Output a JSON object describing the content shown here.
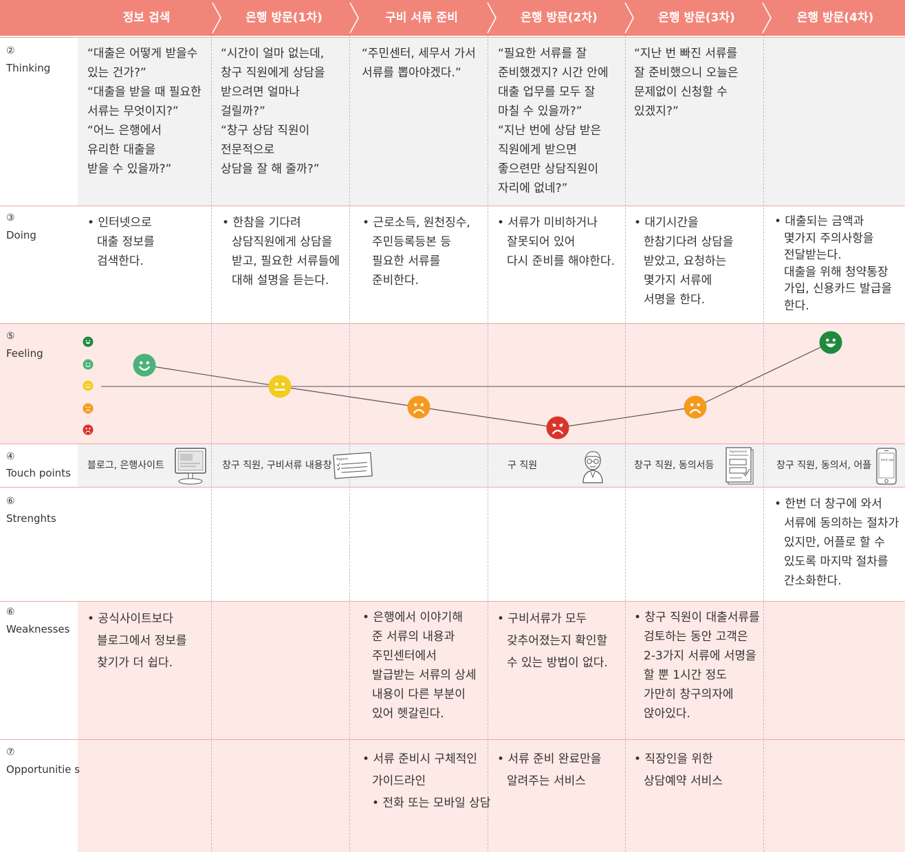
{
  "stages": [
    "정보 검색",
    "은행 방문(1차)",
    "구비 서류 준비",
    "은행 방문(2차)",
    "은행 방문(3차)",
    "은행 방문(4차)"
  ],
  "rows": {
    "thinking": {
      "num": "②",
      "name": "Thinking"
    },
    "doing": {
      "num": "③",
      "name": "Doing"
    },
    "feeling": {
      "num": "⑤",
      "name": "Feeling"
    },
    "touch": {
      "num": "④",
      "name": "Touch points"
    },
    "strengths": {
      "num": "⑥",
      "name": "Strenghts"
    },
    "weaknesses": {
      "num": "⑥",
      "name": "Weaknesses"
    },
    "opportunities": {
      "num": "⑦",
      "name": "Opportunitie s"
    }
  },
  "thinking": [
    "“대출은 어떻게 받을수\n 있는 건가?”\n“대출을 받을 때 필요한\n 서류는 무엇이지?”\n“어느 은행에서\n 유리한 대출을\n 받을 수 있을까?”",
    "“시간이 얼마 없는데,\n 창구 직원에게 상담을\n 받으려면 얼마나\n 걸릴까?”\n“창구 상담 직원이\n 전문적으로\n 상담을 잘 해 줄까?”",
    "“주민센터, 세무서 가서\n서류를 뽑아야겠다.”",
    "“필요한 서류를 잘\n 준비했겠지? 시간 안에\n 대출 업무를 모두 잘\n 마칠 수 있을까?”\n“지난 번에 상담 받은\n 직원에게 받으면\n 좋으련만 상담직원이\n 자리에 없네?”",
    "“지난 번 빠진 서류를\n 잘 준비했으니 오늘은\n 문제없이 신청할 수\n 있겠지?”",
    ""
  ],
  "doing": [
    "• 인터넷으로\n대출 정보를\n검색한다.",
    "• 한참을 기다려\n상담직원에게 상담을\n받고, 필요한 서류들에\n대해 설명을 듣는다.",
    "• 근로소득, 원천징수,\n주민등록등본 등\n필요한 서류를\n준비한다.",
    "• 서류가 미비하거나\n잘못되어 있어\n다시 준비를 해야한다.",
    "• 대기시간을\n한참기다려 상담을\n받았고, 요청하는\n몇가지 서류에\n서명을 한다.",
    "• 대출되는 금액과\n몇가지 주의사항을\n전달받는다.\n대출을 위해 청약통장\n가입, 신용카드 발급을\n한다."
  ],
  "feeling": {
    "scale": [
      "very-happy",
      "happy",
      "neutral",
      "sad",
      "very-sad"
    ],
    "levels": [
      4,
      3,
      2,
      1,
      2,
      5
    ],
    "colors": {
      "very-happy": "#1e8a3c",
      "happy": "#4cb27a",
      "neutral": "#f2cc1f",
      "sad": "#f39a1f",
      "very-sad": "#d9342b"
    }
  },
  "touch_points": [
    {
      "text": "블로그, 은행사이트",
      "icon": "monitor-icon"
    },
    {
      "text": "창구 직원, 구비서류 내용창",
      "icon": "paper-document-icon",
      "doc_label": "Papers"
    },
    {
      "text": "",
      "icon": ""
    },
    {
      "text": "구 직원",
      "icon": "bank-clerk-icon"
    },
    {
      "text": "창구 직원, 동의서등",
      "icon": "agreement-form-icon",
      "doc_label": "Agreement"
    },
    {
      "text": "창구 직원, 동의서, 어플",
      "icon": "smartphone-icon",
      "doc_label": "bank app"
    }
  ],
  "strengths": [
    "",
    "",
    "",
    "",
    "",
    "• 한번 더 창구에 와서\n서류에 동의하는 절차가\n있지만, 어플로 할 수\n있도록 마지막 절차를\n간소화한다."
  ],
  "weaknesses": [
    "• 공식사이트보다\n블로그에서 정보를\n찾기가 더 쉽다.",
    "",
    "• 은행에서 이야기해\n준 서류의 내용과\n주민센터에서\n발급받는 서류의 상세\n내용이 다른 부분이\n있어 헷갈린다.",
    "• 구비서류가 모두\n갖추어졌는지 확인할\n수 있는 방법이 없다.",
    "• 창구 직원이 대출서류를\n검토하는 동안 고객은\n2-3가지 서류에 서명을\n할 뿐 1시간 정도\n가만히 창구의자에\n앉아있다.",
    ""
  ],
  "opportunities": [
    "",
    "",
    "• 서류 준비시 구체적인\n가이드라인\n• 전화 또는 모바일 상담",
    "• 서류 준비 완료만을\n알려주는 서비스",
    "• 직장인을 위한\n상담예약 서비스",
    ""
  ],
  "colors": {
    "header": "#f2857a",
    "gray_band": "#f2f2f2",
    "pink_band": "#fde9e6",
    "divider": "#f0a79f"
  }
}
